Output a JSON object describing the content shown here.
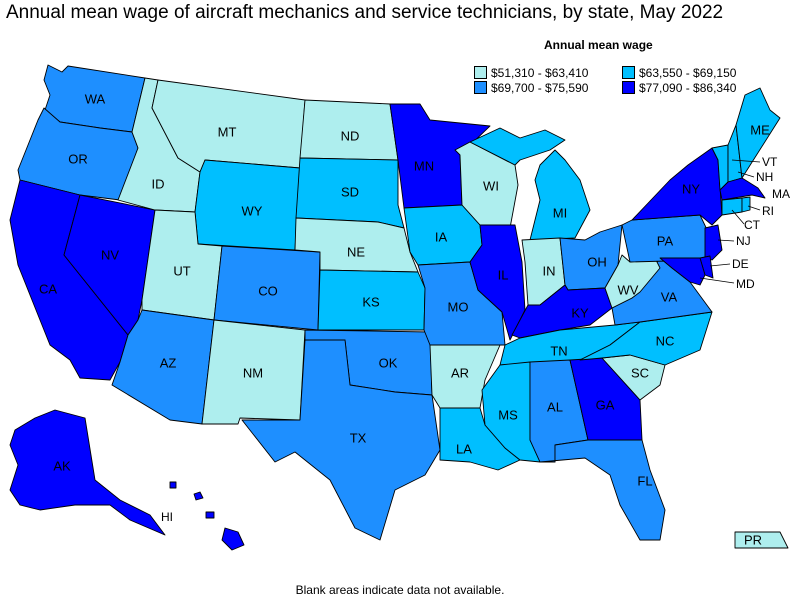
{
  "title": "Annual mean wage of aircraft mechanics and service technicians, by state, May 2022",
  "legend": {
    "title": "Annual mean wage",
    "items": [
      {
        "label": "$51,310 - $63,410",
        "color": "#aeeeee"
      },
      {
        "label": "$63,550 - $69,150",
        "color": "#00bfff"
      },
      {
        "label": "$69,700 - $75,590",
        "color": "#1e8fff"
      },
      {
        "label": "$77,090 - $86,340",
        "color": "#0000ff"
      }
    ]
  },
  "footnote": "Blank areas indicate data not available.",
  "states": {
    "WA": 2,
    "OR": 2,
    "CA": 3,
    "NV": 3,
    "ID": 0,
    "MT": 0,
    "WY": 1,
    "UT": 0,
    "CO": 2,
    "AZ": 2,
    "NM": 0,
    "ND": 0,
    "SD": 1,
    "NE": 0,
    "KS": 1,
    "OK": 2,
    "TX": 2,
    "MN": 3,
    "IA": 1,
    "MO": 2,
    "AR": 0,
    "LA": 1,
    "WI": 0,
    "IL": 3,
    "MI": 1,
    "IN": 0,
    "OH": 2,
    "KY": 3,
    "TN": 1,
    "MS": 1,
    "AL": 2,
    "GA": 3,
    "FL": 2,
    "SC": 0,
    "NC": 1,
    "VA": 2,
    "WV": 0,
    "PA": 2,
    "NY": 3,
    "VT": 1,
    "NH": 1,
    "ME": 1,
    "MA": 3,
    "RI": 1,
    "CT": 1,
    "NJ": 3,
    "DE": 3,
    "MD": 3,
    "AK": 3,
    "HI": 3,
    "PR": 0
  }
}
